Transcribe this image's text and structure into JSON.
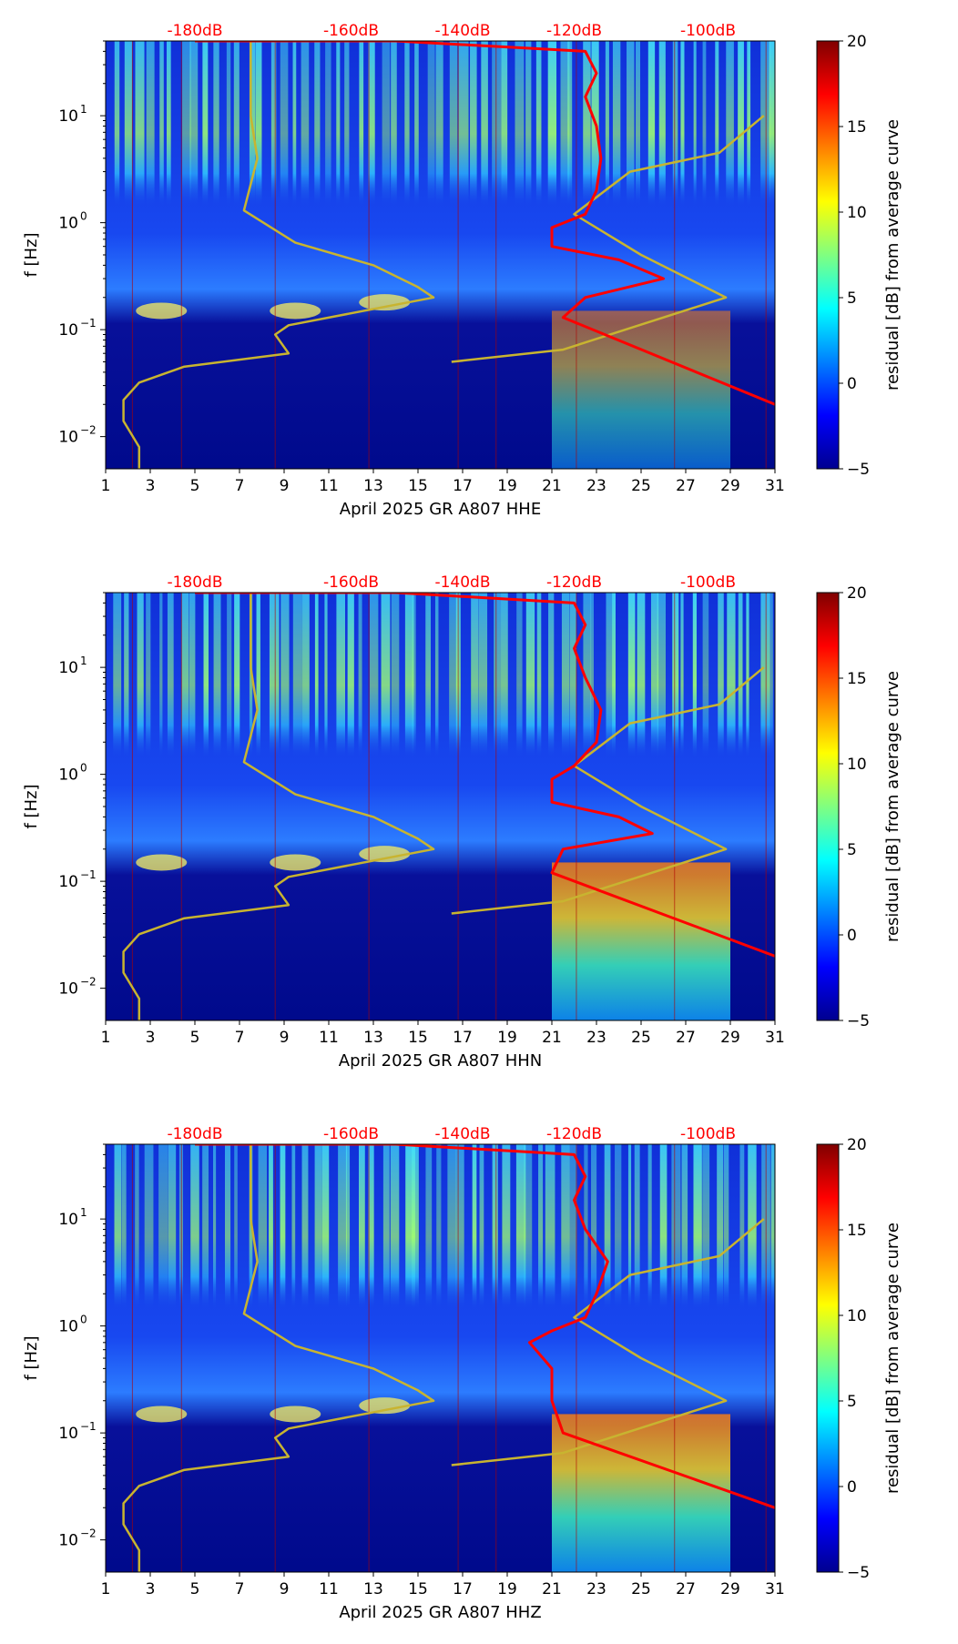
{
  "figure": {
    "width": 1052,
    "height": 1806
  },
  "colors": {
    "noise_model": "#ff0000",
    "mean_curve": "#c8b430",
    "db_label": "#ff0000",
    "background_low": "#00008f",
    "background_mid": "#1460ff"
  },
  "common": {
    "ylabel": "f [Hz]",
    "xticks": [
      "1",
      "3",
      "5",
      "7",
      "9",
      "11",
      "13",
      "15",
      "17",
      "19",
      "21",
      "23",
      "25",
      "27",
      "29",
      "31"
    ],
    "xtick_values": [
      1,
      3,
      5,
      7,
      9,
      11,
      13,
      15,
      17,
      19,
      21,
      23,
      25,
      27,
      29,
      31
    ],
    "yticks": [
      {
        "value": 0.01,
        "base": "10",
        "exp": "−2"
      },
      {
        "value": 0.1,
        "base": "10",
        "exp": "−1"
      },
      {
        "value": 1,
        "base": "10",
        "exp": "0"
      },
      {
        "value": 10,
        "base": "10",
        "exp": "1"
      }
    ],
    "db_labels": [
      {
        "x": 5.0,
        "text": "-180dB"
      },
      {
        "x": 12.0,
        "text": "-160dB"
      },
      {
        "x": 17.0,
        "text": "-140dB"
      },
      {
        "x": 22.0,
        "text": "-120dB"
      },
      {
        "x": 28.0,
        "text": "-100dB"
      }
    ],
    "colorbar_label": "residual [dB] from average curve",
    "colorbar_ticks": [
      "20",
      "15",
      "10",
      "5",
      "0",
      "−5"
    ],
    "colorbar_values": [
      20,
      15,
      10,
      5,
      0,
      -5
    ],
    "colorbar_range": [
      -5,
      20
    ]
  },
  "chart_data": [
    {
      "type": "heatmap",
      "title": "",
      "xlabel": "April 2025 GR A807  HHE",
      "ylabel": "f [Hz]",
      "xlim": [
        1,
        31
      ],
      "ylim": [
        0.005,
        50
      ],
      "yscale": "log",
      "colorbar": {
        "label": "residual [dB] from average curve",
        "range": [
          -5,
          20
        ]
      },
      "series": [
        {
          "name": "mean PSD curve",
          "color": "#c8b430",
          "points": [
            [
              2.5,
              0.005
            ],
            [
              2.5,
              0.008
            ],
            [
              1.8,
              0.014
            ],
            [
              1.8,
              0.022
            ],
            [
              2.5,
              0.032
            ],
            [
              4.5,
              0.045
            ],
            [
              9.2,
              0.06
            ],
            [
              8.6,
              0.09
            ],
            [
              9.2,
              0.11
            ],
            [
              15.7,
              0.2
            ],
            [
              15.0,
              0.25
            ],
            [
              13.0,
              0.4
            ],
            [
              9.5,
              0.65
            ],
            [
              7.2,
              1.3
            ],
            [
              7.8,
              4.0
            ],
            [
              7.5,
              10
            ],
            [
              7.5,
              50
            ]
          ]
        },
        {
          "name": "mean PSD curve (right branch)",
          "color": "#c8b430",
          "points": [
            [
              16.5,
              0.05
            ],
            [
              21.5,
              0.065
            ],
            [
              28.8,
              0.2
            ],
            [
              25.0,
              0.5
            ],
            [
              22.0,
              1.2
            ],
            [
              24.5,
              3.0
            ],
            [
              28.5,
              4.5
            ],
            [
              30.5,
              10
            ]
          ]
        },
        {
          "name": "noise model",
          "color": "#ff0000",
          "points": [
            [
              31,
              0.02
            ],
            [
              21.5,
              0.13
            ],
            [
              22.5,
              0.2
            ],
            [
              26.0,
              0.3
            ],
            [
              24.0,
              0.45
            ],
            [
              21.0,
              0.6
            ],
            [
              21.0,
              0.9
            ],
            [
              22.5,
              1.2
            ],
            [
              23.0,
              2.0
            ],
            [
              23.2,
              4.0
            ],
            [
              23.0,
              8.0
            ],
            [
              22.5,
              15
            ],
            [
              23.0,
              25
            ],
            [
              22.5,
              40
            ],
            [
              14.0,
              50
            ],
            [
              5.0,
              50
            ]
          ]
        }
      ]
    },
    {
      "type": "heatmap",
      "title": "",
      "xlabel": "April 2025 GR A807  HHN",
      "ylabel": "f [Hz]",
      "xlim": [
        1,
        31
      ],
      "ylim": [
        0.005,
        50
      ],
      "yscale": "log",
      "colorbar": {
        "label": "residual [dB] from average curve",
        "range": [
          -5,
          20
        ]
      },
      "series": [
        {
          "name": "mean PSD curve",
          "color": "#c8b430",
          "points": [
            [
              2.5,
              0.005
            ],
            [
              2.5,
              0.008
            ],
            [
              1.8,
              0.014
            ],
            [
              1.8,
              0.022
            ],
            [
              2.5,
              0.032
            ],
            [
              4.5,
              0.045
            ],
            [
              9.2,
              0.06
            ],
            [
              8.6,
              0.09
            ],
            [
              9.2,
              0.11
            ],
            [
              15.7,
              0.2
            ],
            [
              15.0,
              0.25
            ],
            [
              13.0,
              0.4
            ],
            [
              9.5,
              0.65
            ],
            [
              7.2,
              1.3
            ],
            [
              7.8,
              4.0
            ],
            [
              7.5,
              10
            ],
            [
              7.5,
              50
            ]
          ]
        },
        {
          "name": "mean PSD curve (right branch)",
          "color": "#c8b430",
          "points": [
            [
              16.5,
              0.05
            ],
            [
              21.5,
              0.065
            ],
            [
              28.8,
              0.2
            ],
            [
              25.0,
              0.5
            ],
            [
              22.0,
              1.2
            ],
            [
              24.5,
              3.0
            ],
            [
              28.5,
              4.5
            ],
            [
              30.5,
              10
            ]
          ]
        },
        {
          "name": "noise model",
          "color": "#ff0000",
          "points": [
            [
              31,
              0.02
            ],
            [
              21.0,
              0.12
            ],
            [
              21.5,
              0.2
            ],
            [
              25.5,
              0.28
            ],
            [
              24.0,
              0.4
            ],
            [
              21.0,
              0.55
            ],
            [
              21.0,
              0.9
            ],
            [
              22.0,
              1.2
            ],
            [
              23.0,
              2.0
            ],
            [
              23.2,
              4.0
            ],
            [
              22.5,
              8.0
            ],
            [
              22.0,
              15
            ],
            [
              22.5,
              25
            ],
            [
              22.0,
              40
            ],
            [
              14.0,
              50
            ],
            [
              5.0,
              50
            ]
          ]
        }
      ]
    },
    {
      "type": "heatmap",
      "title": "",
      "xlabel": "April 2025 GR A807  HHZ",
      "ylabel": "f [Hz]",
      "xlim": [
        1,
        31
      ],
      "ylim": [
        0.005,
        50
      ],
      "yscale": "log",
      "colorbar": {
        "label": "residual [dB] from average curve",
        "range": [
          -5,
          20
        ]
      },
      "series": [
        {
          "name": "mean PSD curve",
          "color": "#c8b430",
          "points": [
            [
              2.5,
              0.005
            ],
            [
              2.5,
              0.008
            ],
            [
              1.8,
              0.014
            ],
            [
              1.8,
              0.022
            ],
            [
              2.5,
              0.032
            ],
            [
              4.5,
              0.045
            ],
            [
              9.2,
              0.06
            ],
            [
              8.6,
              0.09
            ],
            [
              9.2,
              0.11
            ],
            [
              15.7,
              0.2
            ],
            [
              15.0,
              0.25
            ],
            [
              13.0,
              0.4
            ],
            [
              9.5,
              0.65
            ],
            [
              7.2,
              1.3
            ],
            [
              7.8,
              4.0
            ],
            [
              7.5,
              10
            ],
            [
              7.5,
              50
            ]
          ]
        },
        {
          "name": "mean PSD curve (right branch)",
          "color": "#c8b430",
          "points": [
            [
              16.5,
              0.05
            ],
            [
              21.5,
              0.065
            ],
            [
              28.8,
              0.2
            ],
            [
              25.0,
              0.5
            ],
            [
              22.0,
              1.2
            ],
            [
              24.5,
              3.0
            ],
            [
              28.5,
              4.5
            ],
            [
              30.5,
              10
            ]
          ]
        },
        {
          "name": "noise model",
          "color": "#ff0000",
          "points": [
            [
              31,
              0.02
            ],
            [
              21.5,
              0.1
            ],
            [
              21.0,
              0.2
            ],
            [
              21.0,
              0.4
            ],
            [
              20.0,
              0.7
            ],
            [
              21.0,
              0.9
            ],
            [
              22.5,
              1.2
            ],
            [
              23.0,
              2.0
            ],
            [
              23.5,
              4.0
            ],
            [
              22.5,
              8.0
            ],
            [
              22.0,
              15
            ],
            [
              22.5,
              25
            ],
            [
              22.0,
              40
            ],
            [
              14.0,
              50
            ],
            [
              5.0,
              50
            ]
          ]
        }
      ]
    }
  ]
}
